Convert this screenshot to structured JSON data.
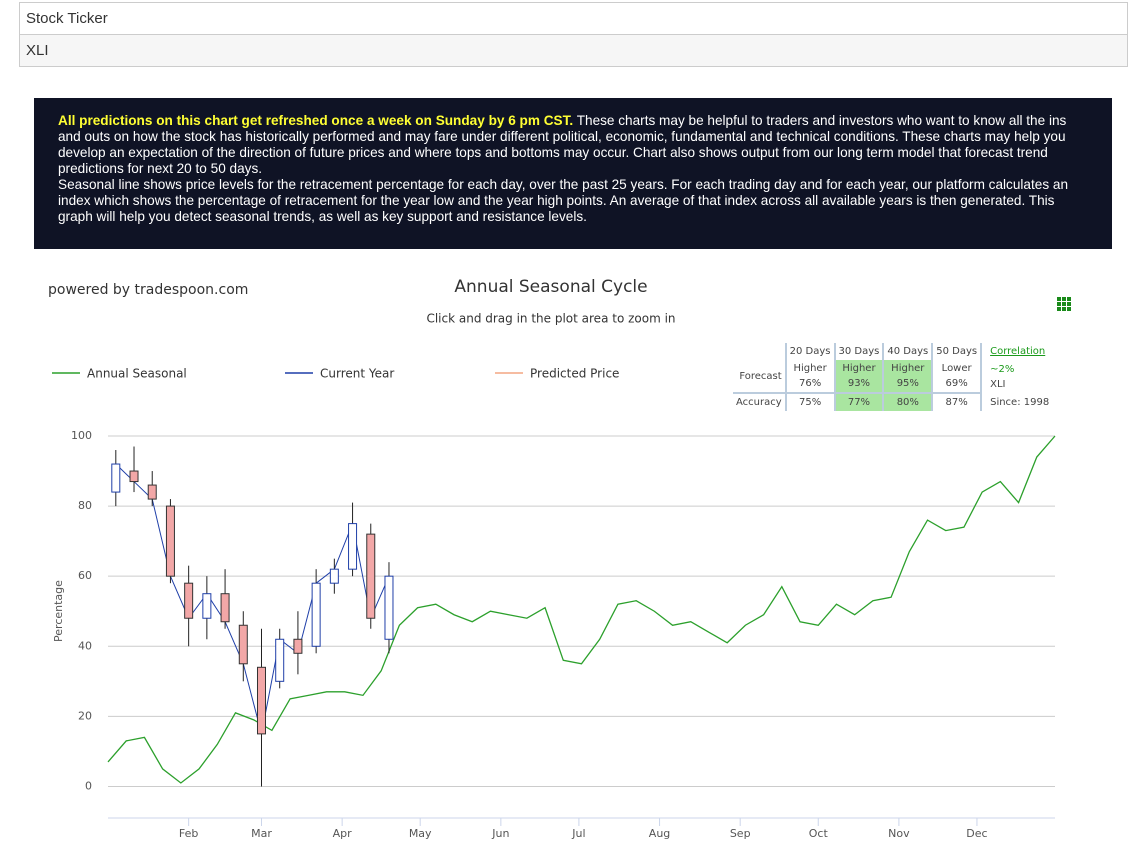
{
  "header": {
    "rows": [
      "Stock Ticker",
      "XLI"
    ]
  },
  "notice": {
    "highlight": "All predictions on this chart get refreshed once a week on Sunday by 6 pm CST.",
    "text": "These charts may be helpful to traders and investors who want to know all the ins and outs on how the stock has historically performed and may fare under different political, economic, fundamental and technical conditions. These charts may help you develop an expectation of the direction of future prices and where tops and bottoms may occur. Chart also shows output from our long term model that forecast trend predictions for next 20 to 50 days.",
    "text2": "Seasonal line shows price levels for the retracement percentage for each day, over the past 25 years. For each trading day and for each year, our platform calculates an index which shows the percentage of retracement for the year low and the year high points. An average of that index across all available years is then generated. This graph will help you detect seasonal trends, as well as key support and resistance levels."
  },
  "chart_data": {
    "type": "line",
    "credit": "powered by tradespoon.com",
    "title": "Annual Seasonal Cycle",
    "subtitle": "Click and drag in the plot area to zoom in",
    "y_label": "Percentage",
    "xlim": [
      1,
      365
    ],
    "ylim": [
      -9,
      100
    ],
    "grid": true,
    "xticks": [
      {
        "value": 32,
        "label": "Feb"
      },
      {
        "value": 60,
        "label": "Mar"
      },
      {
        "value": 91,
        "label": "Apr"
      },
      {
        "value": 121,
        "label": "May"
      },
      {
        "value": 152,
        "label": "Jun"
      },
      {
        "value": 182,
        "label": "Jul"
      },
      {
        "value": 213,
        "label": "Aug"
      },
      {
        "value": 244,
        "label": "Sep"
      },
      {
        "value": 274,
        "label": "Oct"
      },
      {
        "value": 305,
        "label": "Nov"
      },
      {
        "value": 335,
        "label": "Dec"
      }
    ],
    "yticks": [
      0,
      20,
      40,
      60,
      80,
      100
    ],
    "series": [
      {
        "name": "Annual Seasonal",
        "type": "line",
        "color": "#2ca02c",
        "x": [
          1,
          8,
          15,
          22,
          29,
          36,
          43,
          50,
          57,
          64,
          71,
          78,
          85,
          92,
          99,
          106,
          113,
          120,
          127,
          134,
          141,
          148,
          155,
          162,
          169,
          176,
          183,
          190,
          197,
          204,
          211,
          218,
          225,
          232,
          239,
          246,
          253,
          260,
          267,
          274,
          281,
          288,
          295,
          302,
          309,
          316,
          323,
          330,
          337,
          344,
          351,
          358,
          365
        ],
        "values": [
          7,
          13,
          14,
          5,
          1,
          5,
          12,
          21,
          19,
          16,
          25,
          26,
          27,
          27,
          26,
          33,
          46,
          51,
          52,
          49,
          47,
          50,
          49,
          48,
          51,
          36,
          35,
          42,
          52,
          53,
          50,
          46,
          47,
          44,
          41,
          46,
          49,
          57,
          47,
          46,
          52,
          49,
          53,
          54,
          67,
          76,
          73,
          74,
          84,
          87,
          81,
          94,
          100
        ]
      },
      {
        "name": "Current Year",
        "type": "candlestick",
        "color": "#1f3fa8",
        "down_color": "#f2a7a7",
        "x": [
          4,
          11,
          18,
          25,
          32,
          39,
          46,
          53,
          60,
          67,
          74,
          81,
          88,
          95,
          102,
          109
        ],
        "open": [
          84,
          90,
          86,
          80,
          58,
          48,
          55,
          46,
          34,
          30,
          42,
          40,
          58,
          62,
          72,
          42
        ],
        "high": [
          96,
          97,
          90,
          82,
          63,
          60,
          62,
          50,
          45,
          45,
          50,
          62,
          65,
          81,
          75,
          64
        ],
        "low": [
          80,
          84,
          80,
          58,
          40,
          42,
          45,
          30,
          0,
          28,
          32,
          38,
          55,
          60,
          45,
          38
        ],
        "close": [
          92,
          87,
          82,
          60,
          48,
          55,
          47,
          35,
          15,
          42,
          38,
          58,
          62,
          75,
          48,
          60
        ]
      },
      {
        "name": "Predicted Price",
        "type": "line",
        "color": "#f4a582",
        "x": [],
        "values": []
      }
    ]
  },
  "forecast_table": {
    "headers": [
      "20 Days",
      "30 Days",
      "40 Days",
      "50 Days"
    ],
    "forecast_label": "Forecast",
    "forecast": [
      [
        "Higher",
        "76%"
      ],
      [
        "Higher",
        "93%"
      ],
      [
        "Higher",
        "95%"
      ],
      [
        "Lower",
        "69%"
      ]
    ],
    "accuracy_label": "Accuracy",
    "accuracy": [
      "75%",
      "77%",
      "80%",
      "87%"
    ],
    "highlighted": [
      false,
      true,
      true,
      false
    ],
    "correlation_label": "Correlation",
    "correlation": "~2%",
    "ticker": "XLI",
    "since": "Since: 1998"
  }
}
